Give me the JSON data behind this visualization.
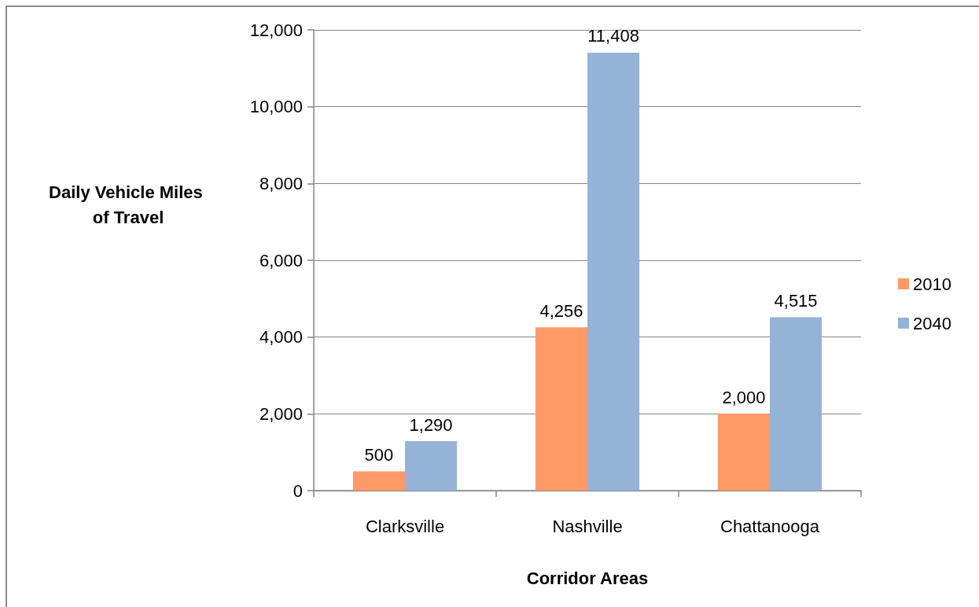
{
  "chart_data": {
    "type": "bar",
    "xlabel": "Corridor Areas",
    "ylabel": "Daily Vehicle Miles of Travel",
    "categories": [
      "Clarksville",
      "Nashville",
      "Chattanooga"
    ],
    "series": [
      {
        "name": "2010",
        "color": "#ff9966",
        "values": [
          500,
          4256,
          2000
        ],
        "value_labels": [
          "500",
          "4,256",
          "2,000"
        ]
      },
      {
        "name": "2040",
        "color": "#95b3d7",
        "values": [
          1290,
          11408,
          4515
        ],
        "value_labels": [
          "1,290",
          "11,408",
          "4,515"
        ]
      }
    ],
    "ylim": [
      0,
      12000
    ],
    "yticks": [
      0,
      {
        "value": 2000,
        "label": "2,000"
      },
      {
        "value": 4000,
        "label": "4,000"
      },
      {
        "value": 6000,
        "label": "6,000"
      },
      {
        "value": 8000,
        "label": "8,000"
      },
      {
        "value": 10000,
        "label": "10,000"
      },
      {
        "value": 12000,
        "label": "12,000"
      }
    ],
    "grid": "y",
    "legend": "right"
  }
}
